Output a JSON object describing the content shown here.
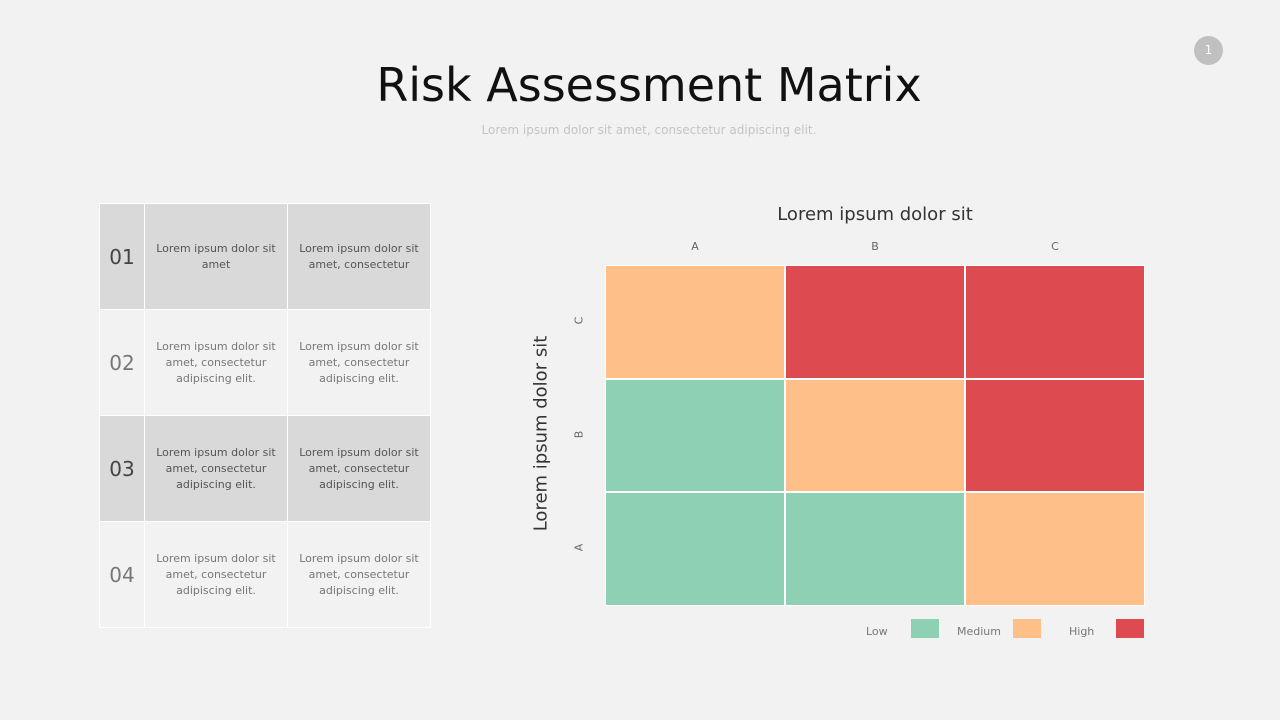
{
  "page": {
    "title": "Risk Assessment Matrix",
    "subtitle": "Lorem ipsum dolor sit amet, consectetur adipiscing elit.",
    "page_number": "1"
  },
  "table": {
    "rows": [
      {
        "num": "01",
        "c1": "Lorem  ipsum dolor sit amet",
        "c2": "Lorem  ipsum dolor sit amet, consectetur"
      },
      {
        "num": "02",
        "c1": "Lorem  ipsum dolor sit amet, consectetur adipiscing elit.",
        "c2": "Lorem  ipsum dolor sit amet, consectetur adipiscing elit."
      },
      {
        "num": "03",
        "c1": "Lorem  ipsum dolor sit amet, consectetur adipiscing elit.",
        "c2": "Lorem  ipsum dolor sit amet, consectetur adipiscing elit."
      },
      {
        "num": "04",
        "c1": "Lorem  ipsum dolor sit amet, consectetur adipiscing elit.",
        "c2": "Lorem  ipsum dolor sit amet, consectetur adipiscing elit."
      }
    ]
  },
  "chart_data": {
    "type": "heatmap",
    "title": "Lorem ipsum dolor sit",
    "xlabel": "",
    "ylabel": "Lorem ipsum dolor sit",
    "x_categories": [
      "A",
      "B",
      "C"
    ],
    "y_categories": [
      "A",
      "B",
      "C"
    ],
    "values": {
      "C": [
        "Medium",
        "High",
        "High"
      ],
      "B": [
        "Low",
        "Medium",
        "High"
      ],
      "A": [
        "Low",
        "Low",
        "Medium"
      ]
    },
    "legend": [
      {
        "label": "Low",
        "color": "#8ed0b4"
      },
      {
        "label": "Medium",
        "color": "#fec088"
      },
      {
        "label": "High",
        "color": "#dd4a50"
      }
    ],
    "legend_position": "bottom-right"
  }
}
